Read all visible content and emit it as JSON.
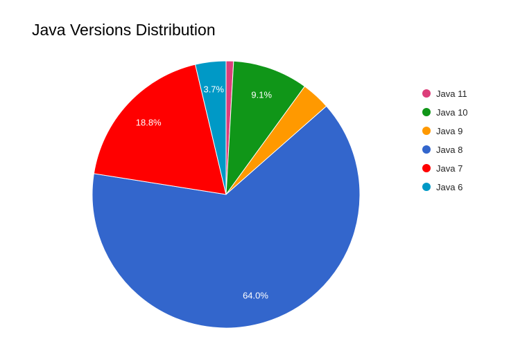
{
  "chart_data": {
    "type": "pie",
    "title": "Java Versions Distribution",
    "legend_position": "right",
    "slices": [
      {
        "label": "Java 11",
        "value": 0.9,
        "color": "#dc3e7a",
        "display": ""
      },
      {
        "label": "Java 10",
        "value": 9.1,
        "color": "#109618",
        "display": "9.1%"
      },
      {
        "label": "Java 9",
        "value": 3.5,
        "color": "#ff9900",
        "display": ""
      },
      {
        "label": "Java 8",
        "value": 64.0,
        "color": "#3366cc",
        "display": "64.0%"
      },
      {
        "label": "Java 7",
        "value": 18.8,
        "color": "#ff0000",
        "display": "18.8%"
      },
      {
        "label": "Java 6",
        "value": 3.7,
        "color": "#0099c6",
        "display": "3.7%"
      }
    ]
  }
}
